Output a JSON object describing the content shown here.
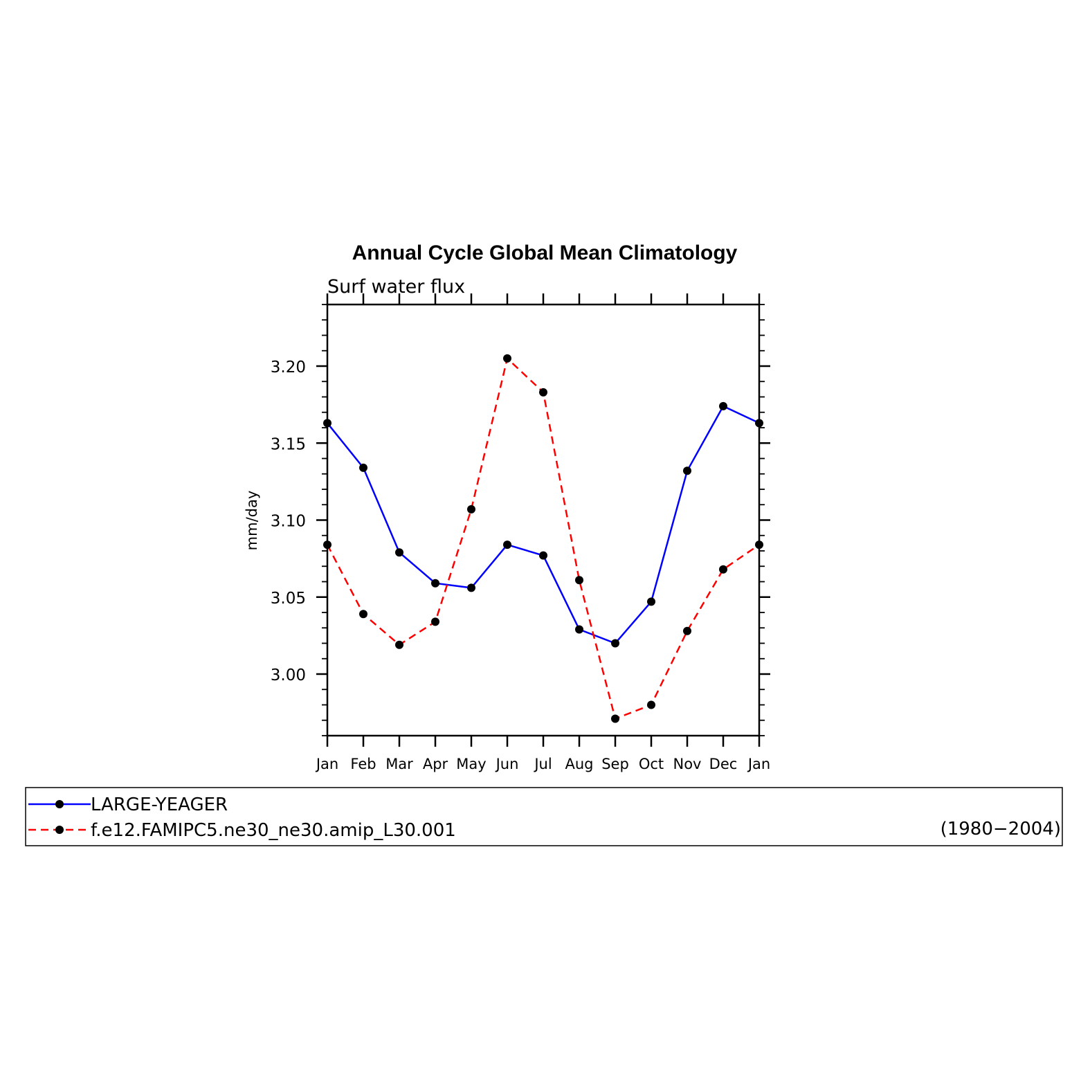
{
  "chart_data": {
    "type": "line",
    "title": "Annual Cycle Global Mean Climatology",
    "subtitle": "Surf water flux",
    "ylabel": "mm/day",
    "xlabel": "",
    "categories": [
      "Jan",
      "Feb",
      "Mar",
      "Apr",
      "May",
      "Jun",
      "Jul",
      "Aug",
      "Sep",
      "Oct",
      "Nov",
      "Dec",
      "Jan"
    ],
    "ylim": [
      2.96,
      3.24
    ],
    "yticks": [
      "3.00",
      "3.05",
      "3.10",
      "3.15",
      "3.20"
    ],
    "grid": false,
    "legend_placement": "bottom",
    "series": [
      {
        "name": "LARGE-YEAGER",
        "color": "#0000ff",
        "dash": "solid",
        "values": [
          3.163,
          3.134,
          3.079,
          3.059,
          3.056,
          3.084,
          3.077,
          3.029,
          3.02,
          3.047,
          3.132,
          3.174,
          3.163
        ]
      },
      {
        "name": "f.e12.FAMIPC5.ne30_ne30.amip_L30.001",
        "color": "#ff0000",
        "dash": "dashed",
        "values": [
          3.084,
          3.039,
          3.019,
          3.034,
          3.107,
          3.205,
          3.183,
          3.061,
          2.971,
          2.98,
          3.028,
          3.068,
          3.084
        ]
      }
    ],
    "legend_note": "(1980−2004)"
  }
}
